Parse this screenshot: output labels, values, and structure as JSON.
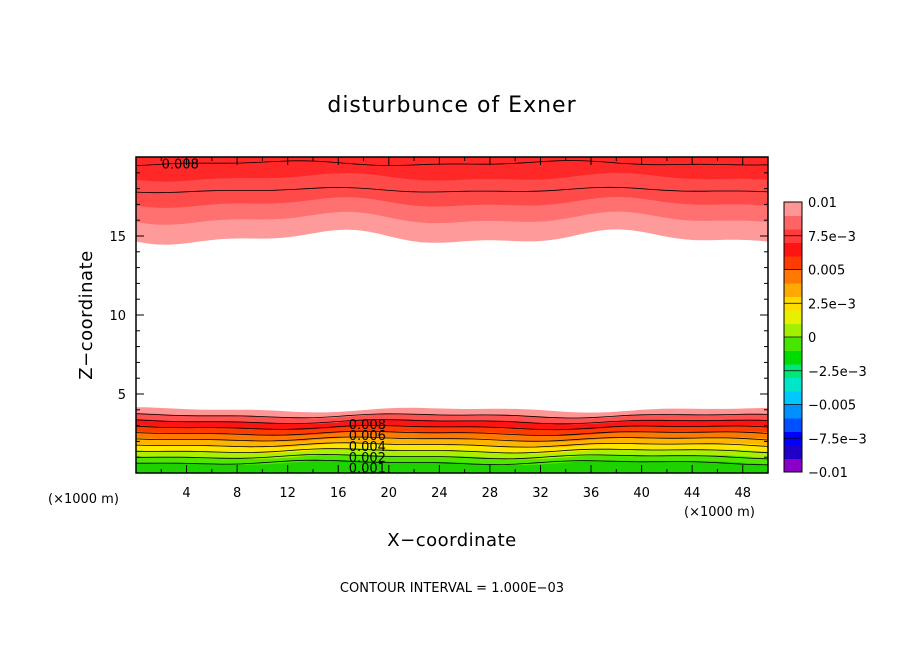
{
  "chart_data": {
    "type": "heatmap",
    "title": "disturbunce of Exner",
    "xlabel": "X−coordinate",
    "ylabel": "Z−coordinate",
    "x_unit_left": "(×1000 m)",
    "x_unit_right": "(×1000 m)",
    "note": "CONTOUR INTERVAL = 1.000E−03",
    "xlim": [
      0,
      50
    ],
    "ylim": [
      0,
      20
    ],
    "x_ticks": [
      4,
      8,
      12,
      16,
      20,
      24,
      28,
      32,
      36,
      40,
      44,
      48
    ],
    "y_ticks": [
      5,
      10,
      15
    ],
    "contour_interval": 0.001,
    "contour_labels": [
      {
        "text": "0.008",
        "x": 3.5,
        "y": 19.6
      },
      {
        "text": "0.008",
        "x": 18.3,
        "y": 3.1
      },
      {
        "text": "0.006",
        "x": 18.3,
        "y": 2.4
      },
      {
        "text": "0.004",
        "x": 18.3,
        "y": 1.7
      },
      {
        "text": "0.002",
        "x": 18.3,
        "y": 1.0
      },
      {
        "text": "0.001",
        "x": 18.3,
        "y": 0.35
      }
    ],
    "colorbar": {
      "labels": [
        "0.01",
        "7.5e−3",
        "0.005",
        "2.5e−3",
        "0",
        "−2.5e−3",
        "−0.005",
        "−7.5e−3",
        "−0.01"
      ],
      "range": [
        -0.01,
        0.01
      ],
      "colors": [
        "#8a00c8",
        "#2000c8",
        "#0000ff",
        "#0050ff",
        "#0090ff",
        "#00c8ff",
        "#00e6c8",
        "#00e678",
        "#00dc00",
        "#46e600",
        "#a0f000",
        "#e6f000",
        "#ffdc00",
        "#ffaa00",
        "#ff7800",
        "#ff3c00",
        "#ff1414",
        "#ff3c3c",
        "#ff6464",
        "#ff9696"
      ]
    },
    "bands": {
      "top": [
        {
          "value": 0.01,
          "color": "#ff2828"
        },
        {
          "value": 0.009,
          "color": "#ff4a4a"
        },
        {
          "value": 0.0085,
          "color": "#ff7070"
        },
        {
          "value": 0.008,
          "color": "#ff9a9a"
        }
      ],
      "bottom": [
        {
          "value": 0.0005,
          "color": "#1ed200"
        },
        {
          "value": 0.0015,
          "color": "#50e600"
        },
        {
          "value": 0.0025,
          "color": "#aaf000"
        },
        {
          "value": 0.0035,
          "color": "#ffe600"
        },
        {
          "value": 0.0045,
          "color": "#ffb400"
        },
        {
          "value": 0.0055,
          "color": "#ff7800"
        },
        {
          "value": 0.0065,
          "color": "#ff3c00"
        },
        {
          "value": 0.0075,
          "color": "#ff1414"
        },
        {
          "value": 0.0085,
          "color": "#ff5050"
        },
        {
          "value": 0.0095,
          "color": "#ff9696"
        }
      ]
    }
  }
}
